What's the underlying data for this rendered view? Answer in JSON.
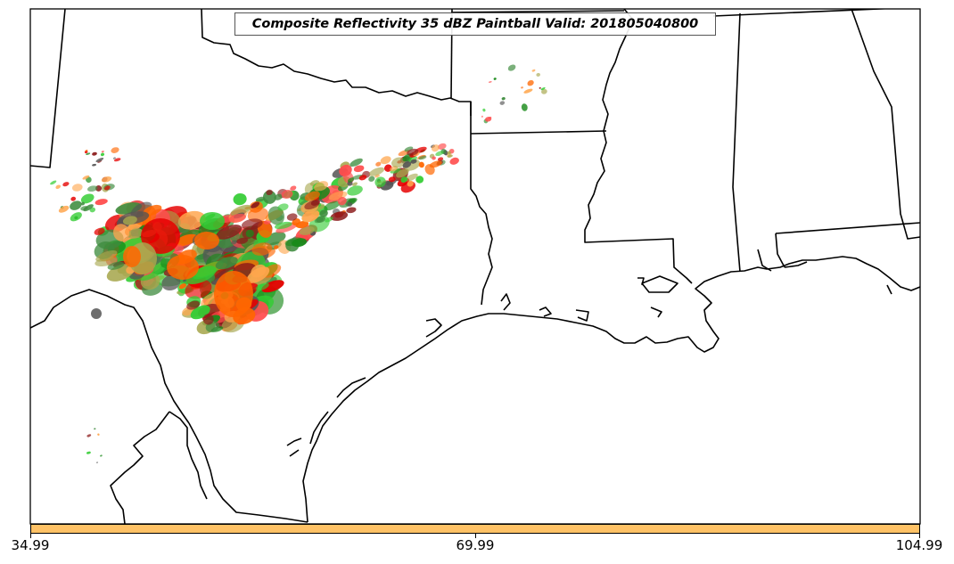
{
  "title": "Composite Reflectivity 35 dBZ Paintball Valid: 201805040800",
  "colorbar": {
    "color": "#ffc266",
    "ticks": [
      "34.99",
      "69.99",
      "104.99"
    ]
  },
  "map": {
    "region": "South-central United States",
    "frame_color": "#000000",
    "land_color": "#ffffff",
    "paintball_colors": [
      "#e60000",
      "#ff6600",
      "#ffa64d",
      "#33cc33",
      "#1a8a1a",
      "#a6a64d",
      "#8b1a1a",
      "#555555",
      "#ff4d4d",
      "#3d8b3d"
    ]
  }
}
